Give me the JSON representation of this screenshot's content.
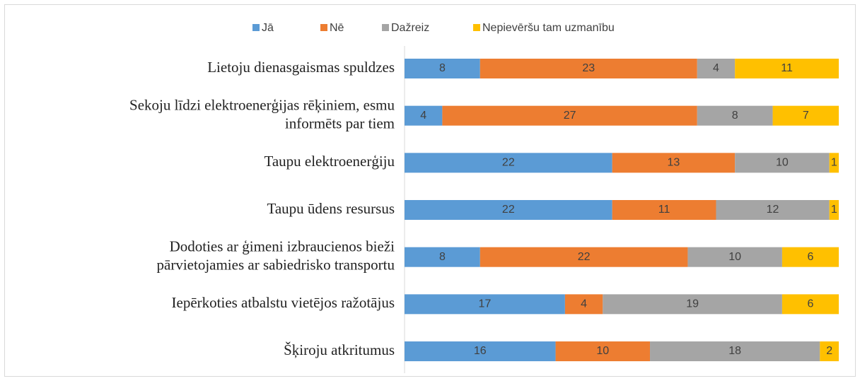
{
  "chart_data": {
    "type": "stacked_barh",
    "categories": [
      [
        "Lietoju dienasgaismas spuldzes"
      ],
      [
        "Sekoju līdzi elektroenerģijas rēķiniem, esmu",
        "informēts par tiem"
      ],
      [
        "Taupu elektroenerģiju"
      ],
      [
        "Taupu ūdens resursus"
      ],
      [
        "Dodoties ar ģimeni izbraucienos bieži",
        "pārvietojamies ar sabiedrisko transportu"
      ],
      [
        "Iepērkoties atbalstu vietējos ražotājus"
      ],
      [
        "Šķiroju atkritumus"
      ]
    ],
    "series": [
      {
        "name": "Jā",
        "color": "#5b9bd5",
        "values": [
          8,
          4,
          22,
          22,
          8,
          17,
          16
        ]
      },
      {
        "name": "Nē",
        "color": "#ed7d31",
        "values": [
          23,
          27,
          13,
          11,
          22,
          4,
          10
        ]
      },
      {
        "name": "Dažreiz",
        "color": "#a5a5a5",
        "values": [
          4,
          8,
          10,
          12,
          10,
          19,
          18
        ]
      },
      {
        "name": "Nepievēršu tam uzmanību",
        "color": "#ffc000",
        "values": [
          11,
          7,
          1,
          1,
          6,
          6,
          2
        ]
      }
    ],
    "xlim": [
      0,
      46
    ],
    "legend": "top"
  }
}
